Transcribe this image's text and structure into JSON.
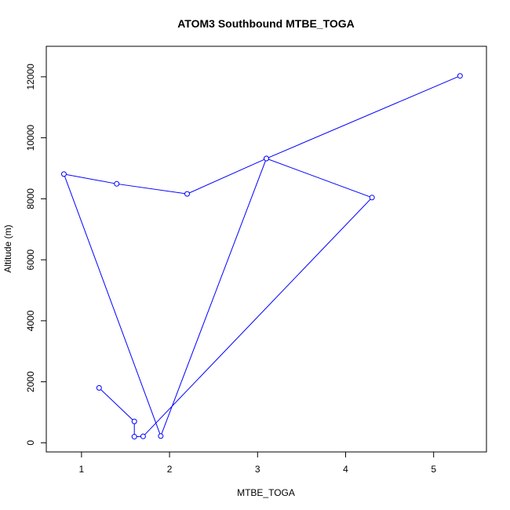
{
  "chart_data": {
    "type": "line",
    "title": "ATOM3 Southbound MTBE_TOGA",
    "xlabel": "MTBE_TOGA",
    "ylabel": "Altitude (m)",
    "xlim": [
      0.6,
      5.6
    ],
    "ylim": [
      -300,
      13000
    ],
    "x_ticks": [
      1,
      2,
      3,
      4,
      5
    ],
    "x_tick_labels": [
      "1",
      "2",
      "3",
      "4",
      "5"
    ],
    "y_ticks": [
      0,
      2000,
      4000,
      6000,
      8000,
      10000,
      12000
    ],
    "y_tick_labels": [
      "0",
      "2000",
      "4000",
      "6000",
      "8000",
      "10000",
      "12000"
    ],
    "grid": false,
    "marker": "open-circle",
    "color": "#0000ff",
    "series": [
      {
        "x": [
          5.3,
          3.1,
          2.2,
          1.4,
          0.8,
          1.9,
          3.1,
          4.3,
          1.7,
          1.6,
          1.6,
          1.2
        ],
        "y": [
          12030,
          9320,
          8160,
          8490,
          8810,
          220,
          9320,
          8040,
          210,
          200,
          700,
          1800
        ]
      }
    ]
  }
}
